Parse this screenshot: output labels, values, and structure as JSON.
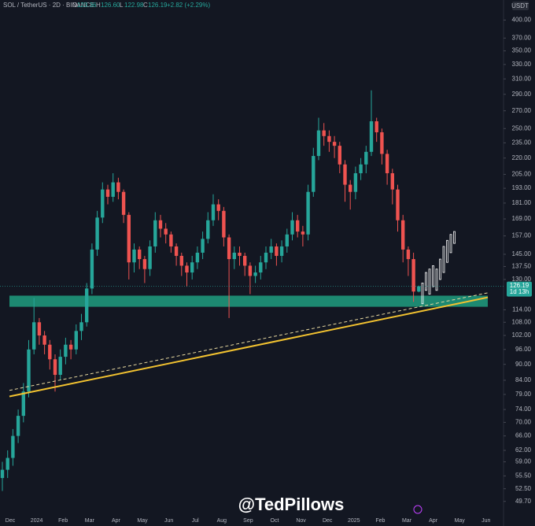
{
  "chart_data": {
    "type": "candlestick",
    "symbol": "SOL / TetherUS · 2D · BINANCE",
    "legend_fields": [
      {
        "label": "O",
        "value": 123.36,
        "text": "123.36"
      },
      {
        "label": "H",
        "value": 126.6,
        "text": "126.60"
      },
      {
        "label": "L",
        "value": 122.98,
        "text": "122.98"
      },
      {
        "label": "C",
        "value": 126.19,
        "text": "126.19"
      }
    ],
    "change": "+2.82 (+2.29%)",
    "currency": "USDT",
    "watermark": "@TedPillows",
    "log_scale": true,
    "ylim": [
      46.7,
      416
    ],
    "yticks": [
      {
        "value": 400,
        "label": "400.00"
      },
      {
        "value": 370,
        "label": "370.00"
      },
      {
        "value": 350,
        "label": "350.00"
      },
      {
        "value": 330,
        "label": "330.00"
      },
      {
        "value": 310,
        "label": "310.00"
      },
      {
        "value": 290,
        "label": "290.00"
      },
      {
        "value": 270,
        "label": "270.00"
      },
      {
        "value": 250,
        "label": "250.00"
      },
      {
        "value": 235,
        "label": "235.00"
      },
      {
        "value": 220,
        "label": "220.00"
      },
      {
        "value": 205,
        "label": "205.00"
      },
      {
        "value": 193,
        "label": "193.00"
      },
      {
        "value": 181,
        "label": "181.00"
      },
      {
        "value": 169,
        "label": "169.00"
      },
      {
        "value": 157,
        "label": "157.00"
      },
      {
        "value": 145,
        "label": "145.00"
      },
      {
        "value": 137.5,
        "label": "137.50"
      },
      {
        "value": 130,
        "label": "130.00"
      },
      {
        "value": 114,
        "label": "114.00"
      },
      {
        "value": 108,
        "label": "108.00"
      },
      {
        "value": 102,
        "label": "102.00"
      },
      {
        "value": 96,
        "label": "96.00"
      },
      {
        "value": 90,
        "label": "90.00"
      },
      {
        "value": 84,
        "label": "84.00"
      },
      {
        "value": 79,
        "label": "79.00"
      },
      {
        "value": 74,
        "label": "74.00"
      },
      {
        "value": 70,
        "label": "70.00"
      },
      {
        "value": 66,
        "label": "66.00"
      },
      {
        "value": 62,
        "label": "62.00"
      },
      {
        "value": 59,
        "label": "59.00"
      },
      {
        "value": 55.5,
        "label": "55.50"
      },
      {
        "value": 52.5,
        "label": "52.50"
      },
      {
        "value": 49.7,
        "label": "49.70"
      }
    ],
    "x_labels": [
      "Dec",
      "2024",
      "Feb",
      "Mar",
      "Apr",
      "May",
      "Jun",
      "Jul",
      "Aug",
      "Sep",
      "Oct",
      "Nov",
      "Dec",
      "2025",
      "Feb",
      "Mar",
      "Apr",
      "May",
      "Jun"
    ],
    "last_price": {
      "value": 126.19,
      "countdown": "1d 13h",
      "color": "#26a69a"
    },
    "up_color": "#26a69a",
    "down_color": "#ef5350",
    "open": [
      55,
      57,
      60,
      66,
      72,
      80,
      96,
      108,
      102,
      98,
      92,
      86,
      93,
      98,
      96,
      104,
      108,
      125,
      148,
      170,
      192,
      186,
      198,
      190,
      172,
      140,
      148,
      142,
      136,
      150,
      168,
      162,
      158,
      150,
      144,
      138,
      134,
      140,
      146,
      155,
      168,
      180,
      175,
      156,
      142,
      146,
      144,
      138,
      132,
      134,
      140,
      146,
      150,
      144,
      150,
      158,
      168,
      160,
      158,
      190,
      222,
      248,
      242,
      236,
      232,
      214,
      196,
      190,
      206,
      214,
      226,
      258,
      246,
      224,
      206,
      192,
      168,
      148,
      142,
      123.36
    ],
    "high": [
      59,
      62,
      68,
      74,
      83,
      100,
      120,
      110,
      104,
      100,
      94,
      96,
      101,
      100,
      107,
      112,
      128,
      152,
      175,
      198,
      196,
      206,
      202,
      192,
      174,
      152,
      150,
      144,
      154,
      174,
      172,
      166,
      160,
      152,
      146,
      140,
      144,
      150,
      160,
      174,
      188,
      184,
      178,
      158,
      150,
      150,
      146,
      140,
      138,
      144,
      150,
      155,
      152,
      154,
      162,
      174,
      172,
      164,
      196,
      230,
      262,
      256,
      248,
      242,
      236,
      218,
      200,
      212,
      220,
      232,
      295,
      262,
      250,
      228,
      210,
      196,
      172,
      150,
      146,
      126.6
    ],
    "low": [
      52,
      55,
      58,
      64,
      70,
      78,
      94,
      98,
      94,
      88,
      80,
      84,
      90,
      92,
      94,
      100,
      106,
      122,
      144,
      166,
      180,
      182,
      184,
      166,
      130,
      134,
      136,
      128,
      132,
      146,
      156,
      152,
      146,
      138,
      132,
      126,
      130,
      136,
      142,
      152,
      164,
      168,
      150,
      110,
      136,
      138,
      132,
      122,
      128,
      130,
      136,
      142,
      138,
      140,
      146,
      154,
      156,
      150,
      154,
      186,
      218,
      232,
      226,
      220,
      206,
      182,
      176,
      184,
      200,
      206,
      222,
      236,
      214,
      196,
      180,
      160,
      140,
      132,
      118,
      122.98
    ],
    "close": [
      57,
      60,
      66,
      72,
      80,
      96,
      108,
      102,
      98,
      92,
      86,
      93,
      98,
      96,
      104,
      108,
      125,
      148,
      170,
      192,
      186,
      198,
      190,
      172,
      140,
      148,
      142,
      136,
      150,
      168,
      162,
      158,
      150,
      144,
      138,
      134,
      140,
      146,
      155,
      168,
      180,
      175,
      156,
      142,
      146,
      144,
      138,
      132,
      134,
      140,
      146,
      150,
      144,
      150,
      158,
      168,
      160,
      158,
      190,
      222,
      248,
      242,
      236,
      232,
      214,
      196,
      190,
      206,
      214,
      226,
      258,
      246,
      224,
      206,
      192,
      168,
      148,
      142,
      123.37,
      126.19
    ],
    "projection": {
      "color": "#ffffff",
      "open": [
        117,
        124,
        122,
        126,
        124,
        130,
        134,
        140,
        146,
        152
      ],
      "close": [
        128,
        134,
        136,
        138,
        136,
        142,
        150,
        154,
        158,
        160
      ]
    },
    "zone": {
      "low": 115.5,
      "high": 121.2,
      "color": "#1e8f76"
    },
    "trendlines": [
      {
        "color": "#f2c230",
        "style": "solid",
        "values": [
          78.3,
          120.3
        ]
      },
      {
        "color": "#e8d9a0",
        "style": "dashed",
        "values": [
          80.4,
          122.7
        ]
      }
    ]
  }
}
